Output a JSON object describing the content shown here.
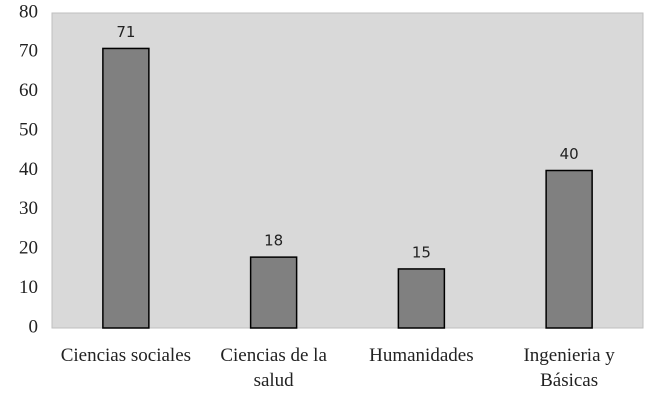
{
  "chart_data": {
    "type": "bar",
    "categories": [
      "Ciencias sociales",
      "Ciencias de la salud",
      "Humanidades",
      "Ingenieria y Básicas"
    ],
    "values": [
      71,
      18,
      15,
      40
    ],
    "color": "#808080",
    "ylim": [
      0,
      80
    ],
    "yticks": [
      0,
      10,
      20,
      30,
      40,
      50,
      60,
      70,
      80
    ],
    "grid": false
  }
}
